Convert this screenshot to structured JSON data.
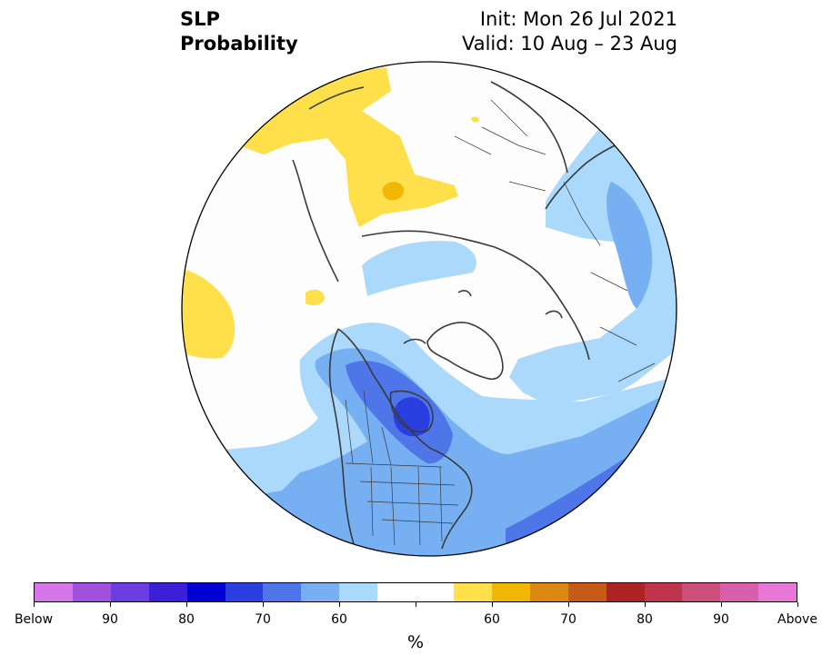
{
  "title": {
    "left_line1": "SLP",
    "left_line2": "Probability",
    "right_line1": "Init: Mon 26 Jul 2021",
    "right_line2": "Valid: 10 Aug – 23 Aug"
  },
  "colorbar": {
    "unit": "%",
    "colors": [
      "#d576e8",
      "#a150de",
      "#6c3de0",
      "#3d1fd8",
      "#0000d4",
      "#2a3fe0",
      "#4f76e8",
      "#77b0f2",
      "#abd9fb",
      "#ffffff",
      "#ffffff",
      "#ffe04a",
      "#f2b705",
      "#dc8712",
      "#c65a18",
      "#ad2323",
      "#bf344a",
      "#cc4e7a",
      "#d85fac",
      "#e877d8"
    ],
    "tick_labels": [
      "Below",
      "90",
      "80",
      "70",
      "60",
      "",
      "60",
      "70",
      "80",
      "90",
      "Above"
    ]
  },
  "map": {
    "projection": "north-polar-stereographic",
    "variable": "sea-level-pressure probability",
    "palette": {
      "white": "#fdfdfd",
      "below_60": "#abd9fb",
      "below_70": "#77b0f2",
      "below_80": "#4f76e8",
      "below_90": "#2a3fe0",
      "above_60": "#ffe04a",
      "above_70": "#f2b705",
      "coast": "#3a3a3a"
    }
  }
}
